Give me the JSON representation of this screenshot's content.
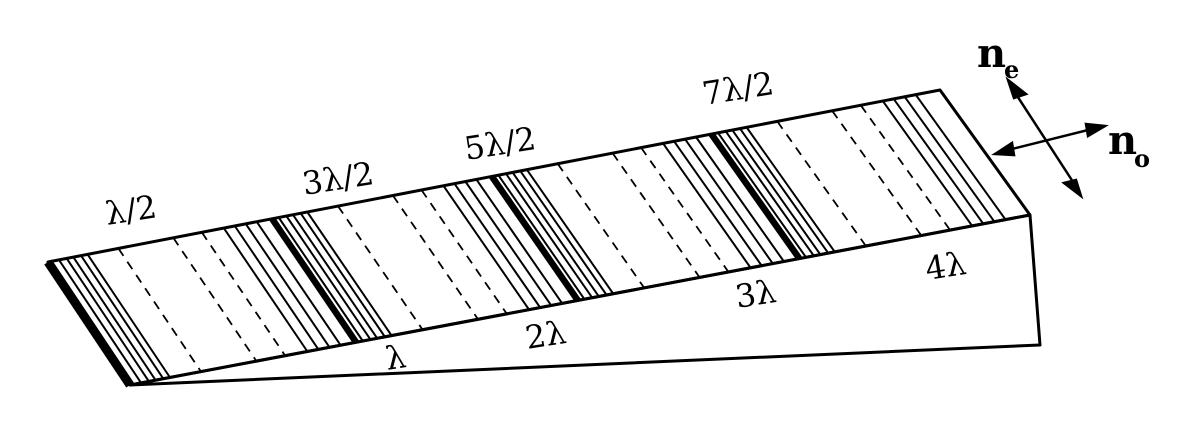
{
  "half_wave_labels": [
    "λ/2",
    "3λ/2",
    "5λ/2",
    "7λ/2"
  ],
  "full_wave_labels": [
    "λ",
    "2λ",
    "3λ",
    "4λ"
  ],
  "axes": {
    "extraordinary": {
      "symbol": "n",
      "subscript": "e"
    },
    "ordinary": {
      "symbol": "n",
      "subscript": "o"
    }
  },
  "colors": {
    "ink": "#000000",
    "background": "#ffffff"
  }
}
